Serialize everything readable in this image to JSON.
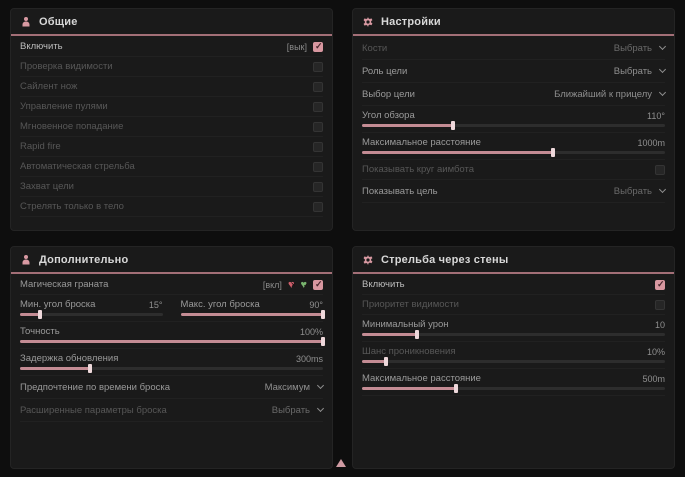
{
  "accent_color": "#d897a0",
  "icons": {
    "general": "person-icon",
    "settings": "gear-icon",
    "additional": "person-icon",
    "wallshoot": "gear-icon",
    "grenade_off": "heart-cross-icon",
    "grenade_on": "heart-check-icon"
  },
  "panels": {
    "general": {
      "title": "Общие",
      "rows": [
        {
          "label": "Включить",
          "hotkey": "[вык]",
          "checked": true
        },
        {
          "label": "Проверка видимости",
          "checked": false
        },
        {
          "label": "Сайлент нож",
          "checked": false
        },
        {
          "label": "Управление пулями",
          "checked": false
        },
        {
          "label": "Мгновенное попадание",
          "checked": false
        },
        {
          "label": "Rapid fire",
          "checked": false
        },
        {
          "label": "Автоматическая стрельба",
          "checked": false
        },
        {
          "label": "Захват цели",
          "checked": false
        },
        {
          "label": "Стрелять только в тело",
          "checked": false
        }
      ]
    },
    "settings": {
      "title": "Настройки",
      "rows": [
        {
          "label": "Кости",
          "value": "Выбрать"
        },
        {
          "label": "Роль цели",
          "value": "Выбрать"
        },
        {
          "label": "Выбор цели",
          "value": "Ближайший к прицелу"
        },
        {
          "label": "Угол обзора",
          "value": "110°",
          "fill": 30
        },
        {
          "label": "Максимальное расстояние",
          "value": "1000m",
          "fill": 63
        },
        {
          "label": "Показывать круг аимбота",
          "checked": false
        },
        {
          "label": "Показывать цель",
          "value": "Выбрать"
        }
      ]
    },
    "additional": {
      "title": "Дополнительно",
      "grenade": {
        "label": "Магическая граната",
        "hotkey": "[вкл]",
        "checked": true
      },
      "min_throw": {
        "label": "Мин. угол броска",
        "value": "15°",
        "fill": 14
      },
      "max_throw": {
        "label": "Макс. угол броска",
        "value": "90°",
        "fill": 100
      },
      "accuracy": {
        "label": "Точность",
        "value": "100%",
        "fill": 100
      },
      "delay": {
        "label": "Задержка обновления",
        "value": "300ms",
        "fill": 23
      },
      "throw_pref": {
        "label": "Предпочтение по времени броска",
        "value": "Максимум"
      },
      "advanced": {
        "label": "Расширенные параметры броска",
        "value": "Выбрать"
      }
    },
    "wallshoot": {
      "title": "Стрельба через стены",
      "rows": [
        {
          "label": "Включить",
          "checked": true
        },
        {
          "label": "Приоритет видимости",
          "checked": false
        },
        {
          "label": "Минимальный урон",
          "value": "10",
          "fill": 18
        },
        {
          "label": "Шанс проникновения",
          "value": "10%",
          "fill": 8
        },
        {
          "label": "Максимальное расстояние",
          "value": "500m",
          "fill": 31
        }
      ]
    }
  }
}
